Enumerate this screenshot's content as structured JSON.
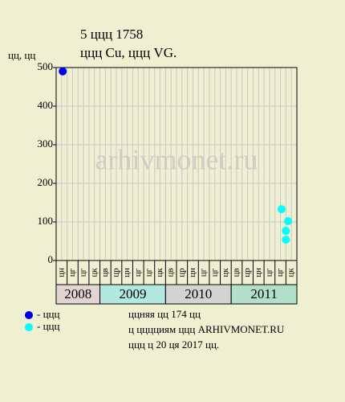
{
  "chart_data": {
    "type": "scatter",
    "title": "5 ццц 1758",
    "subtitle": "ццц Cu, ццц VG.",
    "y_label": "цц, цц",
    "watermark": "arhivmonet.ru",
    "categories": [
      "цн",
      "цг",
      "цг",
      "цк",
      "цв",
      "цр",
      "цн",
      "цг",
      "цг",
      "цк",
      "цв",
      "цр",
      "цн",
      "цг",
      "цг",
      "цк",
      "цв",
      "цр",
      "цн",
      "цг",
      "цг",
      "цк"
    ],
    "years": [
      {
        "label": "2008",
        "span": 4,
        "color": "#e3d3d3"
      },
      {
        "label": "2009",
        "span": 6,
        "color": "#b2e8e0"
      },
      {
        "label": "2010",
        "span": 6,
        "color": "#d3d3d3"
      },
      {
        "label": "2011",
        "span": 6,
        "color": "#b2dfca"
      }
    ],
    "xlim": [
      0,
      22
    ],
    "ylim": [
      0,
      500
    ],
    "yticks": [
      0,
      100,
      200,
      300,
      400,
      500
    ],
    "grid": true,
    "series": [
      {
        "name": "- ццц",
        "color": "#0000ee",
        "x": [
          0.6
        ],
        "values": [
          490
        ]
      },
      {
        "name": "- ццц",
        "color": "#00ffff",
        "x": [
          20.6,
          21.2,
          21.0,
          21.0
        ],
        "values": [
          133,
          102,
          77,
          54
        ]
      }
    ],
    "notes": [
      "ццняя цц 174 цц",
      "ц цццциям ццц ARHIVMONET.RU",
      "ццц ц 20 ця 2017 цц."
    ]
  }
}
